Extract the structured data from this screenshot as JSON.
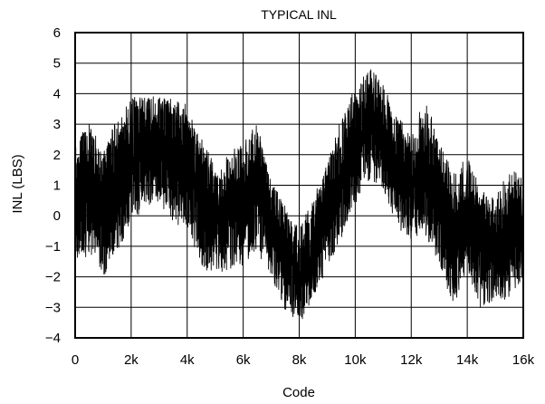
{
  "chart_data": {
    "type": "line",
    "title": "TYPICAL INL",
    "xlabel": "Code",
    "ylabel": "INL (LBS)",
    "xlim": [
      0,
      16000
    ],
    "ylim": [
      -4,
      6
    ],
    "grid": true,
    "x_ticks": [
      {
        "value": 0,
        "label": "0"
      },
      {
        "value": 2000,
        "label": "2k"
      },
      {
        "value": 4000,
        "label": "4k"
      },
      {
        "value": 6000,
        "label": "6k"
      },
      {
        "value": 8000,
        "label": "8k"
      },
      {
        "value": 10000,
        "label": "10k"
      },
      {
        "value": 12000,
        "label": "12k"
      },
      {
        "value": 14000,
        "label": "14k"
      },
      {
        "value": 16000,
        "label": "16k"
      }
    ],
    "y_ticks": [
      {
        "value": 6,
        "label": "6"
      },
      {
        "value": 5,
        "label": "5"
      },
      {
        "value": 4,
        "label": "4"
      },
      {
        "value": 3,
        "label": "3"
      },
      {
        "value": 2,
        "label": "2"
      },
      {
        "value": 1,
        "label": "1"
      },
      {
        "value": 0,
        "label": "0"
      },
      {
        "value": -1,
        "label": "−1"
      },
      {
        "value": -2,
        "label": "−2"
      },
      {
        "value": -3,
        "label": "−3"
      },
      {
        "value": -4,
        "label": "−4"
      }
    ],
    "series": [
      {
        "color": "#000000",
        "x": [
          0,
          500,
          1000,
          1500,
          2000,
          2500,
          3000,
          3500,
          4000,
          4500,
          5000,
          5500,
          6000,
          6500,
          7000,
          7500,
          8000,
          8500,
          9000,
          9500,
          10000,
          10500,
          11000,
          11500,
          12000,
          12500,
          13000,
          13500,
          14000,
          14500,
          15000,
          15500,
          16000
        ],
        "y": [
          0.7,
          0.8,
          0.3,
          1.2,
          1.8,
          2.2,
          2.3,
          1.9,
          1.8,
          0.8,
          0.0,
          0.4,
          0.4,
          1.1,
          -0.3,
          -0.8,
          -2.2,
          -1.3,
          0.2,
          1.1,
          2.3,
          3.2,
          2.5,
          1.6,
          1.1,
          1.6,
          0.6,
          -1.0,
          -0.1,
          -0.6,
          -1.0,
          -0.8,
          -0.5
        ],
        "ymin": [
          -1.8,
          -1.2,
          -2.0,
          -1.2,
          -0.3,
          0.3,
          0.4,
          -0.2,
          -0.6,
          -1.8,
          -1.8,
          -1.9,
          -1.6,
          -1.2,
          -2.0,
          -3.1,
          -3.6,
          -2.8,
          -1.7,
          -0.8,
          0.4,
          1.2,
          0.9,
          -0.4,
          -0.8,
          -0.6,
          -1.6,
          -3.1,
          -1.8,
          -3.1,
          -2.7,
          -2.8,
          -2.0
        ],
        "ymax": [
          2.4,
          3.0,
          2.2,
          3.2,
          3.9,
          3.9,
          4.0,
          3.8,
          3.7,
          2.6,
          1.6,
          2.0,
          2.5,
          3.0,
          1.2,
          0.3,
          -0.4,
          0.6,
          1.7,
          3.2,
          4.2,
          4.9,
          4.3,
          3.3,
          2.6,
          4.0,
          2.4,
          1.4,
          2.0,
          0.8,
          0.6,
          1.6,
          1.2
        ]
      }
    ]
  }
}
